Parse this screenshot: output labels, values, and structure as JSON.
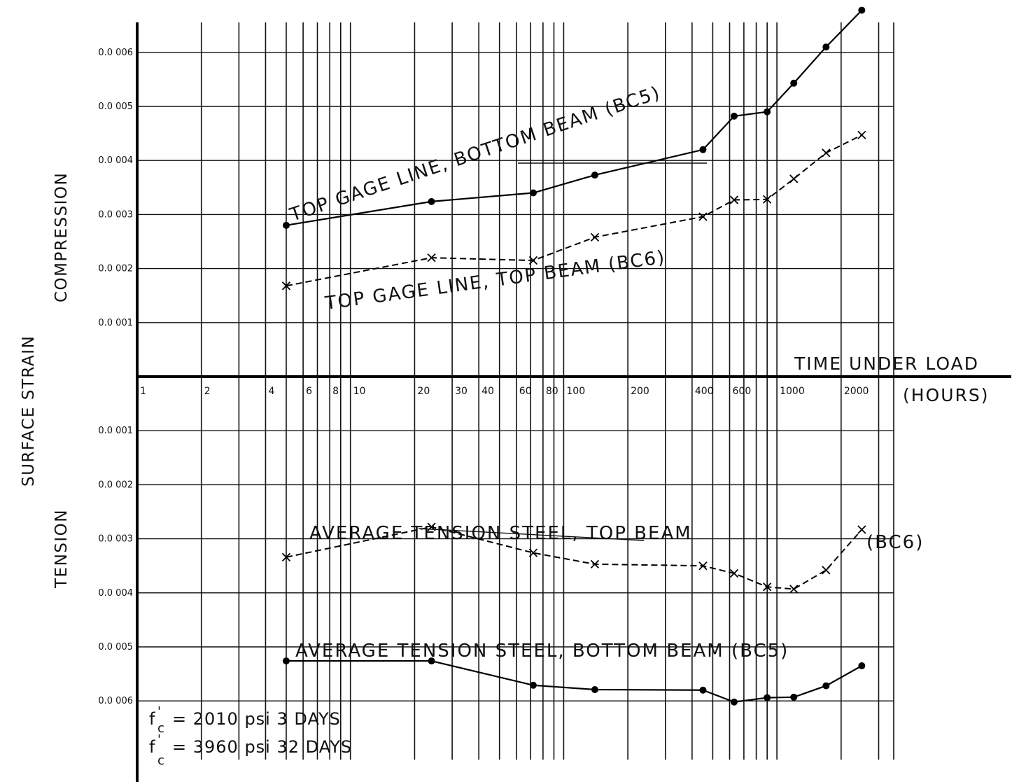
{
  "chart_data": {
    "type": "line",
    "x_scale": "log",
    "x_tick_labels": [
      "1",
      "2",
      "4",
      "6",
      "8",
      "10",
      "20",
      "30",
      "40",
      "60",
      "80",
      "100",
      "200",
      "400",
      "600",
      "1000",
      "2000"
    ],
    "x_ticks": [
      1,
      2,
      4,
      6,
      8,
      10,
      20,
      30,
      40,
      60,
      80,
      100,
      200,
      400,
      600,
      1000,
      2000
    ],
    "xlabel_line1": "TIME UNDER LOAD",
    "xlabel_line2": "(HOURS)",
    "ylabel": "SURFACE STRAIN",
    "ylabel_top": "COMPRESSION",
    "ylabel_bottom": "TENSION",
    "y_ticks_compression": [
      {
        "value": 0.0006,
        "label": "0.0 006"
      },
      {
        "value": 0.0005,
        "label": "0.0 005"
      },
      {
        "value": 0.0004,
        "label": "0.0 004"
      },
      {
        "value": 0.0003,
        "label": "0.0 003"
      },
      {
        "value": 0.0002,
        "label": "0.0 002"
      },
      {
        "value": 0.0001,
        "label": "0.0 001"
      }
    ],
    "y_ticks_tension": [
      {
        "value": 0.0001,
        "label": "0.0 001"
      },
      {
        "value": 0.0002,
        "label": "0.0 002"
      },
      {
        "value": 0.0003,
        "label": "0.0 003"
      },
      {
        "value": 0.0004,
        "label": "0.0 004"
      },
      {
        "value": 0.0005,
        "label": "0.0 005"
      },
      {
        "value": 0.0006,
        "label": "0.0 006"
      }
    ],
    "ylim_compression": [
      0,
      0.0007
    ],
    "ylim_tension": [
      0,
      0.0007
    ],
    "grid": true,
    "series": [
      {
        "region": "compression",
        "style": "solid",
        "marker": "dot",
        "label": "TOP GAGE LINE, BOTTOM BEAM (BC5)",
        "x": [
          5,
          24,
          72,
          140,
          450,
          630,
          900,
          1200,
          1700,
          2500
        ],
        "y": [
          0.00028,
          0.000324,
          0.00034,
          0.000373,
          0.00042,
          0.000482,
          0.00049,
          0.000543,
          0.00061,
          0.000678
        ]
      },
      {
        "region": "compression",
        "style": "dashed",
        "marker": "x",
        "label": "TOP GAGE LINE, TOP BEAM (BC6)",
        "x": [
          5,
          24,
          72,
          140,
          450,
          630,
          900,
          1200,
          1700,
          2500
        ],
        "y": [
          0.000168,
          0.00022,
          0.000215,
          0.000258,
          0.000296,
          0.000327,
          0.000328,
          0.000366,
          0.000414,
          0.000447
        ]
      },
      {
        "region": "tension",
        "style": "dashed",
        "marker": "x",
        "label": "AVERAGE TENSION STEEL, TOP BEAM (BC6)",
        "x": [
          5,
          24,
          72,
          140,
          450,
          630,
          900,
          1200,
          1700,
          2500
        ],
        "y": [
          0.000334,
          0.000278,
          0.000326,
          0.000347,
          0.00035,
          0.000364,
          0.000389,
          0.000393,
          0.000358,
          0.000283
        ]
      },
      {
        "region": "tension",
        "style": "solid",
        "marker": "dot",
        "label": "AVERAGE TENSION STEEL, BOTTOM BEAM (BC5)",
        "x": [
          5,
          24,
          72,
          140,
          450,
          630,
          900,
          1200,
          1700,
          2500
        ],
        "y": [
          0.000526,
          0.000526,
          0.000571,
          0.000579,
          0.00058,
          0.000602,
          0.000594,
          0.000593,
          0.000572,
          0.000535
        ]
      }
    ],
    "annotations": [
      {
        "text": "TOP GAGE LINE, BOTTOM BEAM (BC5)"
      },
      {
        "text": "TOP GAGE LINE, TOP BEAM (BC6)"
      },
      {
        "text": "AVERAGE TENSION STEEL, TOP BEAM"
      },
      {
        "text": "(BC6)"
      },
      {
        "text": "AVERAGE TENSION STEEL, BOTTOM BEAM (BC5)"
      }
    ],
    "notes": [
      {
        "text": "= 2010 psi 3 DAYS",
        "symbol": "f'c"
      },
      {
        "text": "= 3960 psi 32 DAYS",
        "symbol": "f'c"
      }
    ]
  }
}
